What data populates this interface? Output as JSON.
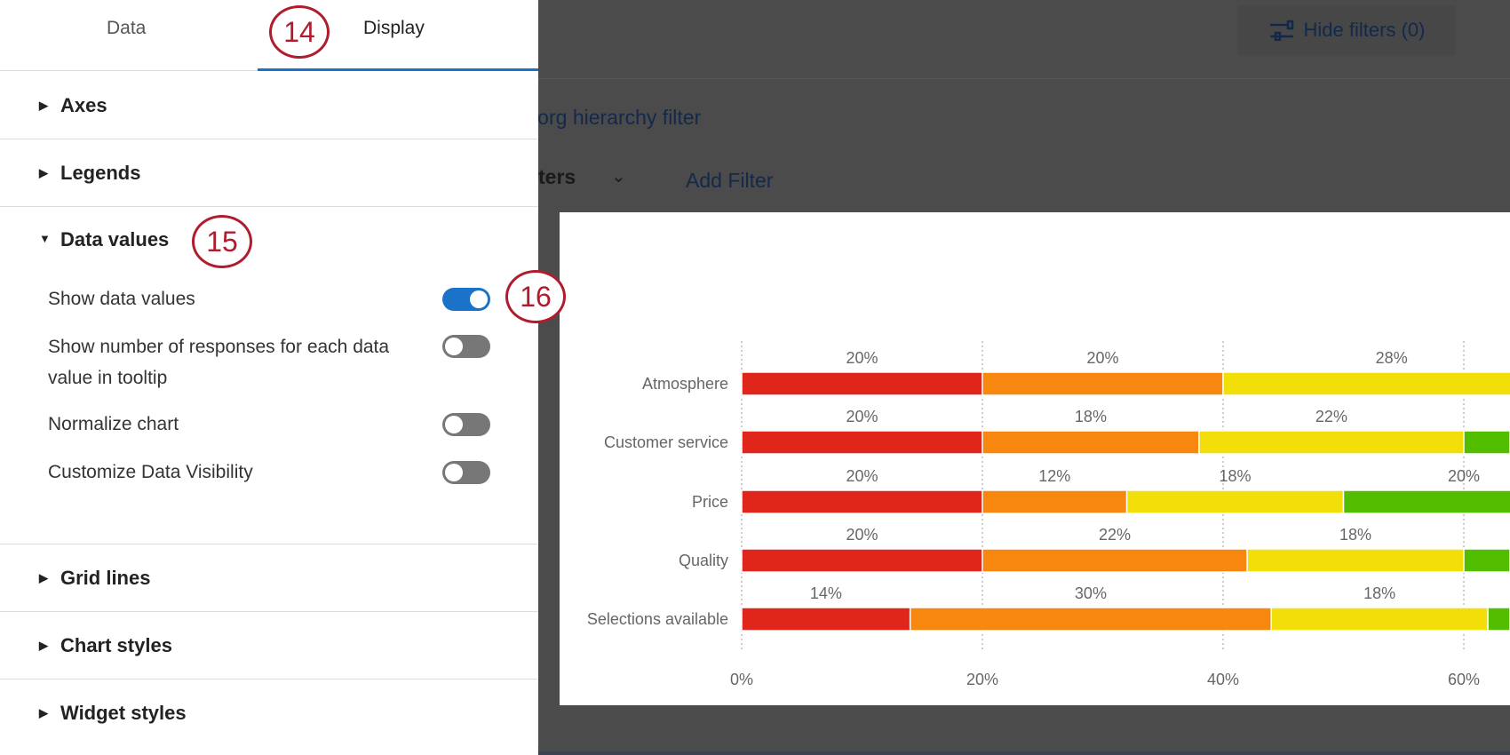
{
  "header": {
    "hide_filters": "Hide filters (0)",
    "org_filter": "n org hierarchy filter",
    "filters_partial": "ters",
    "add_filter": "Add Filter"
  },
  "sidebar": {
    "tabs": [
      {
        "label": "Data"
      },
      {
        "label": "Display",
        "active": true
      }
    ],
    "sections": {
      "axes": "Axes",
      "legends": "Legends",
      "data_values": "Data values",
      "grid_lines": "Grid lines",
      "chart_styles": "Chart styles",
      "widget_styles": "Widget styles"
    },
    "options": [
      {
        "label": "Show data values",
        "on": true
      },
      {
        "label": "Show number of responses for each data value in tooltip",
        "on": false
      },
      {
        "label": "Normalize chart",
        "on": false
      },
      {
        "label": "Customize Data Visibility",
        "on": false
      }
    ]
  },
  "annotations": [
    "14",
    "15",
    "16"
  ],
  "colors": {
    "red": "#e0251b",
    "orange": "#f7870f",
    "yellow": "#f2df0a",
    "green": "#53be00",
    "accent": "#1a73c8",
    "annotation": "#b01c2e"
  },
  "chart_data": {
    "type": "bar",
    "orientation": "horizontal",
    "stacked": true,
    "categories": [
      "Atmosphere",
      "Customer service",
      "Price",
      "Quality",
      "Selections available"
    ],
    "series_colors": [
      "#e0251b",
      "#f7870f",
      "#f2df0a",
      "#53be00"
    ],
    "values": [
      [
        20,
        20,
        28
      ],
      [
        20,
        18,
        22
      ],
      [
        20,
        12,
        18,
        20
      ],
      [
        20,
        22,
        18
      ],
      [
        14,
        30,
        18
      ]
    ],
    "x_ticks": [
      "0%",
      "20%",
      "40%",
      "60%"
    ],
    "grid": "dotted vertical"
  }
}
